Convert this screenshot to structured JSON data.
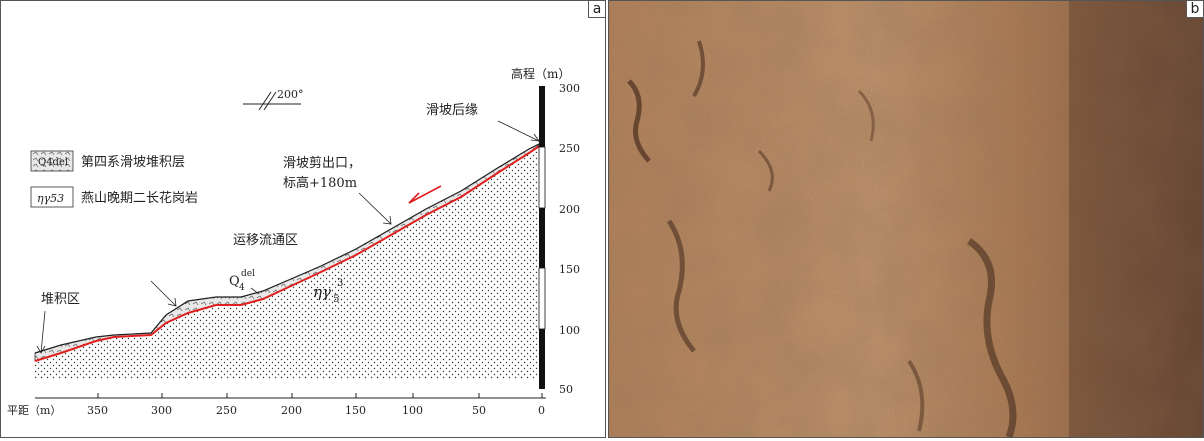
{
  "panel_a": {
    "label": "a",
    "elevation_axis": {
      "title": "高程（m）",
      "ticks": [
        "300",
        "250",
        "200",
        "150",
        "100",
        "50"
      ]
    },
    "distance_axis": {
      "title": "平距（m）",
      "ticks": [
        "350",
        "300",
        "250",
        "200",
        "150",
        "100",
        "50",
        "0"
      ]
    },
    "orientation": "200°",
    "legend": [
      {
        "symbol": "Q4del",
        "label": "第四系滑坡堆积层"
      },
      {
        "symbol": "ηγ53",
        "label": "燕山晚期二长花岗岩"
      }
    ],
    "annotations": {
      "rear_edge": "滑坡后缘",
      "shear_outlet_line1": "滑坡剪出口，",
      "shear_outlet_line2": "标高+180m",
      "transport_zone": "运移流通区",
      "accumulation_zone": "堆积区",
      "deposit_label": "Q",
      "deposit_sub": "4",
      "deposit_sup": "del",
      "granite_label": "ηγ",
      "granite_sub": "5",
      "granite_sup": "3"
    },
    "colors": {
      "slip_surface": "#e02020",
      "line": "#222222"
    }
  },
  "panel_b": {
    "label": "b",
    "colors": {
      "rock_light": "#c99a72",
      "rock_mid": "#a8734c",
      "rock_dark": "#6e4a35"
    }
  }
}
